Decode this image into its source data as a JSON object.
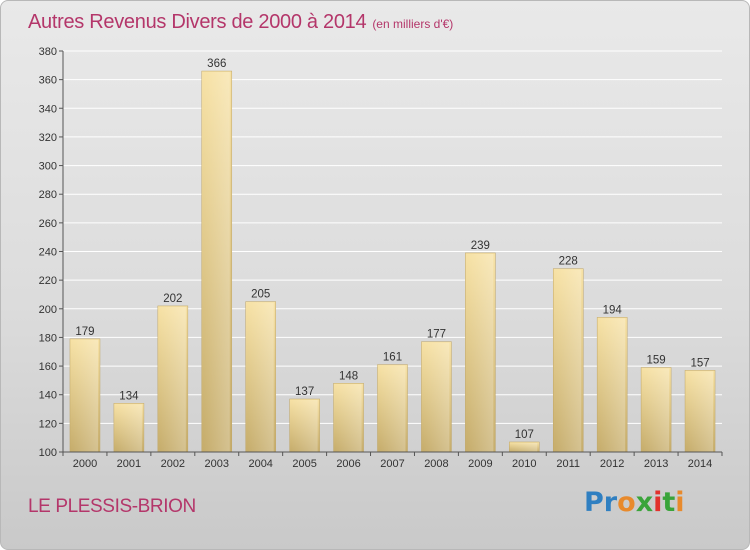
{
  "page": {
    "title": "Autres Revenus Divers de 2000 à 2014",
    "subtitle": "(en milliers d'€)",
    "location": "LE PLESSIS-BRION",
    "logo_text": "Proxiti"
  },
  "colors": {
    "title": "#b4366a",
    "bar_light": "#f5dd9c",
    "bar_dark": "#c7ae6e",
    "axis": "#555555",
    "grid": "#ffffff",
    "logo_letters": [
      "#2f7fc1",
      "#2f7fc1",
      "#e88a2c",
      "#3aa43a",
      "#e2312d",
      "#3aa43a",
      "#e88a2c"
    ]
  },
  "chart_data": {
    "type": "bar",
    "title": "Autres Revenus Divers de 2000 à 2014",
    "subtitle": "(en milliers d'€)",
    "xlabel": "",
    "ylabel": "",
    "categories": [
      "2000",
      "2001",
      "2002",
      "2003",
      "2004",
      "2005",
      "2006",
      "2007",
      "2008",
      "2009",
      "2010",
      "2011",
      "2012",
      "2013",
      "2014"
    ],
    "values": [
      179,
      134,
      202,
      366,
      205,
      137,
      148,
      161,
      177,
      239,
      107,
      228,
      194,
      159,
      157
    ],
    "ylim": [
      100,
      380
    ],
    "yticks": [
      100,
      120,
      140,
      160,
      180,
      200,
      220,
      240,
      260,
      280,
      300,
      320,
      340,
      360,
      380
    ],
    "grid": true,
    "data_labels": true
  }
}
